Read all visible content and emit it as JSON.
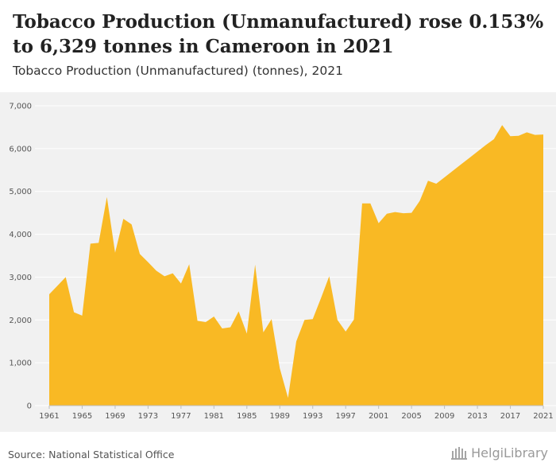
{
  "header": {
    "title": "Tobacco Production (Unmanufactured) rose 0.153% to 6,329 tonnes in Cameroon in 2021",
    "subtitle": "Tobacco Production (Unmanufactured) (tonnes), 2021"
  },
  "footer": {
    "source": "Source: National Statistical Office",
    "logo_text": "HelgiLibrary"
  },
  "colors": {
    "area": "#f9b924",
    "panel": "#f1f1f1",
    "grid": "#ffffff"
  },
  "chart_data": {
    "type": "area",
    "x": [
      1961,
      1962,
      1963,
      1964,
      1965,
      1966,
      1967,
      1968,
      1969,
      1970,
      1971,
      1972,
      1973,
      1974,
      1975,
      1976,
      1977,
      1978,
      1979,
      1980,
      1981,
      1982,
      1983,
      1984,
      1985,
      1986,
      1987,
      1988,
      1989,
      1990,
      1991,
      1992,
      1993,
      1994,
      1995,
      1996,
      1997,
      1998,
      1999,
      2000,
      2001,
      2002,
      2003,
      2004,
      2005,
      2006,
      2007,
      2008,
      2009,
      2010,
      2011,
      2012,
      2013,
      2014,
      2015,
      2016,
      2017,
      2018,
      2019,
      2020,
      2021
    ],
    "series": [
      {
        "values": [
          2600,
          2800,
          3000,
          2180,
          2100,
          3780,
          3800,
          4870,
          3570,
          4360,
          4230,
          3540,
          3350,
          3150,
          3020,
          3090,
          2850,
          3300,
          1980,
          1950,
          2080,
          1800,
          1830,
          2200,
          1680,
          3290,
          1710,
          2020,
          870,
          180,
          1500,
          2000,
          2020,
          2510,
          3020,
          2000,
          1730,
          2010,
          4720,
          4720,
          4260,
          4480,
          4520,
          4490,
          4500,
          4780,
          5250,
          5180,
          5330,
          5480,
          5630,
          5780,
          5930,
          6080,
          6220,
          6550,
          6290,
          6300,
          6380,
          6320,
          6329
        ]
      }
    ],
    "ylim": [
      0,
      7000
    ],
    "yticks": [
      0,
      1000,
      2000,
      3000,
      4000,
      5000,
      6000,
      7000
    ],
    "ytick_labels": [
      "0",
      "1,000",
      "2,000",
      "3,000",
      "4,000",
      "5,000",
      "6,000",
      "7,000"
    ],
    "xticks": [
      1961,
      1965,
      1969,
      1973,
      1977,
      1981,
      1985,
      1989,
      1993,
      1997,
      2001,
      2005,
      2009,
      2013,
      2017,
      2021
    ],
    "xtick_labels": [
      "1961",
      "1965",
      "1969",
      "1973",
      "1977",
      "1981",
      "1985",
      "1989",
      "1993",
      "1997",
      "2001",
      "2005",
      "2009",
      "2013",
      "2017",
      "2021"
    ],
    "grid": true,
    "xlabel": "",
    "ylabel": ""
  }
}
